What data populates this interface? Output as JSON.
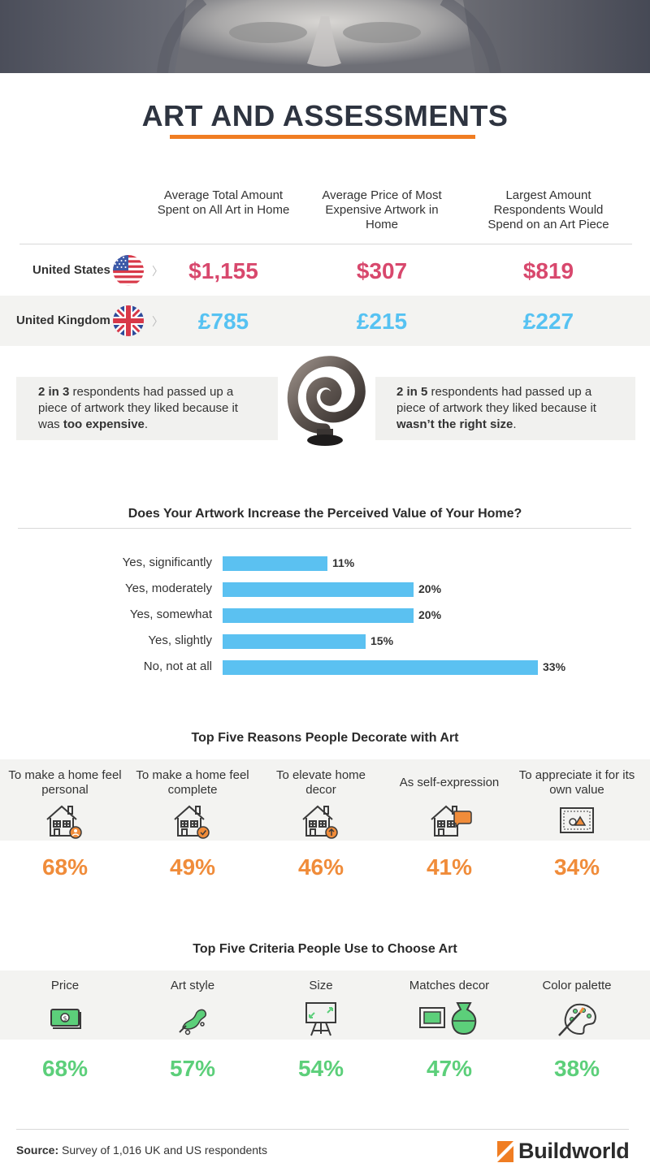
{
  "title": "ART AND ASSESSMENTS",
  "colors": {
    "accent": "#f07d22",
    "us": "#d8486d",
    "uk": "#56c2f2",
    "bar": "#5bc1f1",
    "orange": "#f08c3a",
    "green": "#5ccf7a"
  },
  "table": {
    "columns": [
      "Average Total Amount Spent on All Art in Home",
      "Average Price of Most Expensive Artwork in Home",
      "Largest Amount Respondents Would Spend on an Art Piece"
    ],
    "rows": [
      {
        "country": "United States",
        "flag": "us-flag-icon",
        "values": [
          "$1,155",
          "$307",
          "$819"
        ]
      },
      {
        "country": "United Kingdom",
        "flag": "uk-flag-icon",
        "values": [
          "£785",
          "£215",
          "£227"
        ]
      }
    ]
  },
  "callouts": {
    "left": {
      "strong": "2 in 3",
      "text1": " respondents had passed up a piece of artwork they liked because it was ",
      "emph": "too expensive",
      "text2": "."
    },
    "right": {
      "strong": "2 in 5",
      "text1": " respondents had passed up a piece of artwork they liked because it ",
      "emph": "wasn’t the right size",
      "text2": "."
    },
    "sculpture_icon": "spiral-sculpture-icon"
  },
  "chart_data": [
    {
      "type": "bar",
      "orientation": "horizontal",
      "title": "Does Your Artwork Increase the Perceived Value of Your Home?",
      "categories": [
        "Yes, significantly",
        "Yes, moderately",
        "Yes, somewhat",
        "Yes, slightly",
        "No, not at all"
      ],
      "values": [
        11,
        20,
        20,
        15,
        33
      ],
      "value_labels": [
        "11%",
        "20%",
        "20%",
        "15%",
        "33%"
      ],
      "unit": "%",
      "xlim": [
        0,
        33
      ],
      "grid": false
    },
    {
      "type": "table",
      "title": "Top Five Reasons People Decorate with Art",
      "categories": [
        "To make a home feel personal",
        "To make a home feel complete",
        "To elevate home decor",
        "As self-expression",
        "To appreciate it for its own value"
      ],
      "values": [
        68,
        49,
        46,
        41,
        34
      ],
      "value_labels": [
        "68%",
        "49%",
        "46%",
        "41%",
        "34%"
      ],
      "icons": [
        "house-person-icon",
        "house-check-icon",
        "house-arrow-up-icon",
        "house-speech-bubble-icon",
        "framed-picture-icon"
      ]
    },
    {
      "type": "table",
      "title": "Top Five Criteria People Use to Choose Art",
      "categories": [
        "Price",
        "Art style",
        "Size",
        "Matches decor",
        "Color palette"
      ],
      "values": [
        68,
        57,
        54,
        47,
        38
      ],
      "value_labels": [
        "68%",
        "57%",
        "54%",
        "47%",
        "38%"
      ],
      "icons": [
        "money-icon",
        "paint-stroke-icon",
        "easel-icon",
        "frame-and-vase-icon",
        "palette-brush-icon"
      ]
    }
  ],
  "footer": {
    "source_label": "Source:",
    "source_text": "Survey of 1,016 UK and US respondents",
    "brand": "Buildworld"
  }
}
